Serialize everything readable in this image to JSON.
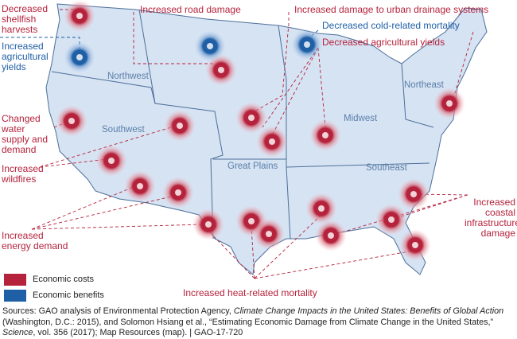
{
  "regions": [
    "Northwest",
    "Southwest",
    "Great Plains",
    "Midwest",
    "Southeast",
    "Northeast"
  ],
  "impacts": {
    "shellfish": "Decreased shellfish harvests",
    "ag_yields_up": "Increased agricultural yields",
    "road": "Increased road damage",
    "drainage": "Increased damage to urban drainage systems",
    "cold": "Decreased cold-related mortality",
    "ag_yields_down": "Decreased agricultural yields",
    "water": "Changed water supply and demand",
    "wildfires": "Increased wildfires",
    "energy": "Increased energy demand",
    "coastal": "Increased coastal infrastructure damage",
    "heat": "Increased heat-related mortality"
  },
  "legend": [
    {
      "label": "Economic costs",
      "color": "#b5223b"
    },
    {
      "label": "Economic benefits",
      "color": "#1f5fa6"
    }
  ],
  "source": [
    "Sources: GAO analysis of Environmental Protection Agency, ",
    "Climate Change Impacts in the United States: Benefits of Global Action",
    " (Washington, D.C.: 2015), and Solomon Hsiang et al., “Estimating Economic Damage from Climate Change in the United States,” ",
    "Science",
    ", vol. 356 (2017); Map Resources (map).  |  GAO-17-720"
  ]
}
